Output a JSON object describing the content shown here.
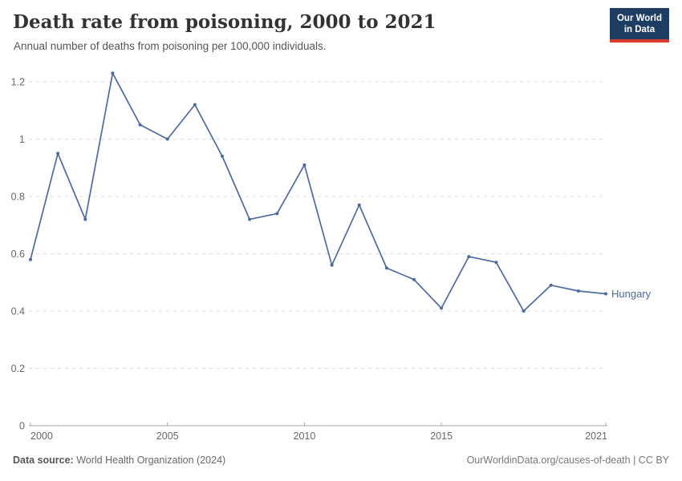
{
  "header": {
    "title": "Death rate from poisoning, 2000 to 2021",
    "subtitle": "Annual number of deaths from poisoning per 100,000 individuals.",
    "logo": {
      "line1": "Our World",
      "line2": "in Data"
    }
  },
  "chart_data": {
    "type": "line",
    "title": "Death rate from poisoning, 2000 to 2021",
    "xlabel": "",
    "ylabel": "Annual number of deaths from poisoning per 100,000 individuals",
    "xlim": [
      2000,
      2021
    ],
    "ylim": [
      0,
      1.2
    ],
    "grid": true,
    "legend_position": "end-of-line",
    "x_ticks": [
      2000,
      2005,
      2010,
      2015,
      2021
    ],
    "y_tick_labels": [
      "0",
      "0.2",
      "0.4",
      "0.6",
      "0.8",
      "1",
      "1.2"
    ],
    "x": [
      2000,
      2001,
      2002,
      2003,
      2004,
      2005,
      2006,
      2007,
      2008,
      2009,
      2010,
      2011,
      2012,
      2013,
      2014,
      2015,
      2016,
      2017,
      2018,
      2019,
      2020,
      2021
    ],
    "series": [
      {
        "name": "Hungary",
        "color": "#4C6A9C",
        "values": [
          0.58,
          0.95,
          0.72,
          1.23,
          1.05,
          1.0,
          1.12,
          0.94,
          0.72,
          0.74,
          0.91,
          0.56,
          0.77,
          0.55,
          0.51,
          0.41,
          0.59,
          0.57,
          0.4,
          0.49,
          0.47,
          0.46
        ]
      }
    ]
  },
  "footer": {
    "datasource_label": "Data source:",
    "datasource_value": " World Health Organization (2024)",
    "credit": "OurWorldinData.org/causes-of-death | CC BY"
  },
  "colors": {
    "line": "#4C6A9C",
    "logo_navy": "#1d3d63",
    "logo_red": "#d93a2b",
    "grid": "#dddddd",
    "axis": "#a5a5a5",
    "tick_text": "#666666"
  }
}
